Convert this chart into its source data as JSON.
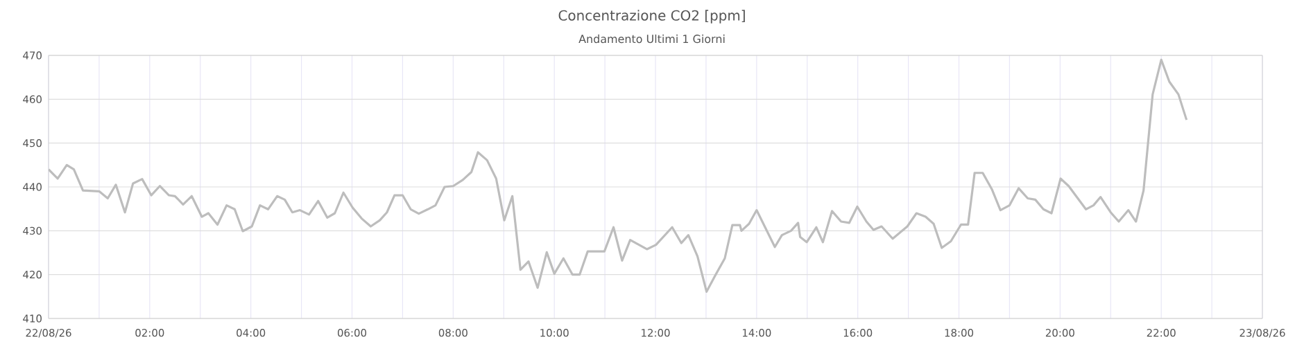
{
  "chart_data": {
    "type": "line",
    "title": "Concentrazione CO2 [ppm]",
    "subtitle": "Andamento Ultimi 1 Giorni",
    "x": [
      0,
      0.18,
      0.36,
      0.5,
      0.68,
      1.0,
      1.17,
      1.33,
      1.51,
      1.67,
      1.85,
      2.03,
      2.2,
      2.38,
      2.5,
      2.66,
      2.83,
      3.03,
      3.16,
      3.34,
      3.52,
      3.68,
      3.84,
      4.02,
      4.18,
      4.34,
      4.52,
      4.67,
      4.82,
      4.97,
      5.15,
      5.33,
      5.51,
      5.66,
      5.83,
      6.01,
      6.19,
      6.37,
      6.55,
      6.69,
      6.84,
      7.0,
      7.16,
      7.32,
      7.5,
      7.65,
      7.83,
      8.0,
      8.19,
      8.36,
      8.49,
      8.67,
      8.85,
      9.01,
      9.17,
      9.33,
      9.49,
      9.67,
      9.85,
      10.0,
      10.18,
      10.36,
      10.5,
      10.66,
      10.99,
      11.17,
      11.34,
      11.5,
      11.83,
      12.01,
      12.33,
      12.51,
      12.65,
      12.83,
      13.01,
      13.19,
      13.37,
      13.52,
      13.67,
      13.7,
      13.85,
      14.0,
      14.18,
      14.36,
      14.5,
      14.68,
      14.82,
      14.86,
      14.99,
      15.18,
      15.31,
      15.49,
      15.67,
      15.83,
      15.99,
      16.17,
      16.31,
      16.47,
      16.69,
      16.98,
      17.16,
      17.34,
      17.5,
      17.66,
      17.84,
      18.04,
      18.18,
      18.31,
      18.47,
      18.65,
      18.82,
      19.0,
      19.18,
      19.36,
      19.51,
      19.67,
      19.83,
      20.01,
      20.17,
      20.35,
      20.51,
      20.66,
      20.8,
      21.0,
      21.16,
      21.35,
      21.5,
      21.65,
      21.83,
      22.0,
      22.16,
      22.34,
      22.5
    ],
    "series": [
      {
        "color": "#bdbdbd",
        "values": [
          444.0,
          441.9,
          445.0,
          444.0,
          439.2,
          439.0,
          437.4,
          440.5,
          434.2,
          440.8,
          441.8,
          438.1,
          440.2,
          438.1,
          437.9,
          436.0,
          437.9,
          433.2,
          434.0,
          431.4,
          435.8,
          434.9,
          429.9,
          431.0,
          435.8,
          434.9,
          437.9,
          437.1,
          434.2,
          434.7,
          433.7,
          436.8,
          433.0,
          434.0,
          438.7,
          435.3,
          432.8,
          431.0,
          432.4,
          434.2,
          438.1,
          438.1,
          434.9,
          433.9,
          434.9,
          435.8,
          440.0,
          440.2,
          441.6,
          443.4,
          447.9,
          446.1,
          441.9,
          432.4,
          437.9,
          421.1,
          423.0,
          417.0,
          425.1,
          420.2,
          423.7,
          420.0,
          420.0,
          425.3,
          425.3,
          430.8,
          423.2,
          427.9,
          425.8,
          426.8,
          430.8,
          427.2,
          429.0,
          424.2,
          416.1,
          420.0,
          423.7,
          431.3,
          431.3,
          430.0,
          431.6,
          434.7,
          430.5,
          426.3,
          429.0,
          430.0,
          431.8,
          428.6,
          427.4,
          430.8,
          427.4,
          434.5,
          432.1,
          431.8,
          435.5,
          432.1,
          430.2,
          431.0,
          428.2,
          431.0,
          434.0,
          433.2,
          431.6,
          426.1,
          427.6,
          431.4,
          431.4,
          443.2,
          443.2,
          439.5,
          434.7,
          435.8,
          439.7,
          437.4,
          437.1,
          434.9,
          434.0,
          441.9,
          440.2,
          437.4,
          434.9,
          435.8,
          437.7,
          434.2,
          432.1,
          434.7,
          432.1,
          439.2,
          461.1,
          469.0,
          464.0,
          461.1,
          455.3
        ]
      }
    ],
    "xlim": [
      0,
      24
    ],
    "xticks": [
      {
        "value": 0,
        "label": "22/08/26"
      },
      {
        "value": 1,
        "label": null
      },
      {
        "value": 2,
        "label": "02:00"
      },
      {
        "value": 3,
        "label": null
      },
      {
        "value": 4,
        "label": "04:00"
      },
      {
        "value": 5,
        "label": null
      },
      {
        "value": 6,
        "label": "06:00"
      },
      {
        "value": 7,
        "label": null
      },
      {
        "value": 8,
        "label": "08:00"
      },
      {
        "value": 9,
        "label": null
      },
      {
        "value": 10,
        "label": "10:00"
      },
      {
        "value": 11,
        "label": null
      },
      {
        "value": 12,
        "label": "12:00"
      },
      {
        "value": 13,
        "label": null
      },
      {
        "value": 14,
        "label": "14:00"
      },
      {
        "value": 15,
        "label": null
      },
      {
        "value": 16,
        "label": "16:00"
      },
      {
        "value": 17,
        "label": null
      },
      {
        "value": 18,
        "label": "18:00"
      },
      {
        "value": 19,
        "label": null
      },
      {
        "value": 20,
        "label": "20:00"
      },
      {
        "value": 21,
        "label": null
      },
      {
        "value": 22,
        "label": "22:00"
      },
      {
        "value": 23,
        "label": null
      },
      {
        "value": 24,
        "label": "23/08/26"
      }
    ],
    "ylim": [
      410,
      470
    ],
    "yticks": [
      410,
      420,
      430,
      440,
      450,
      460,
      470
    ],
    "grid": true,
    "marker": "none",
    "line_style": "solid"
  }
}
